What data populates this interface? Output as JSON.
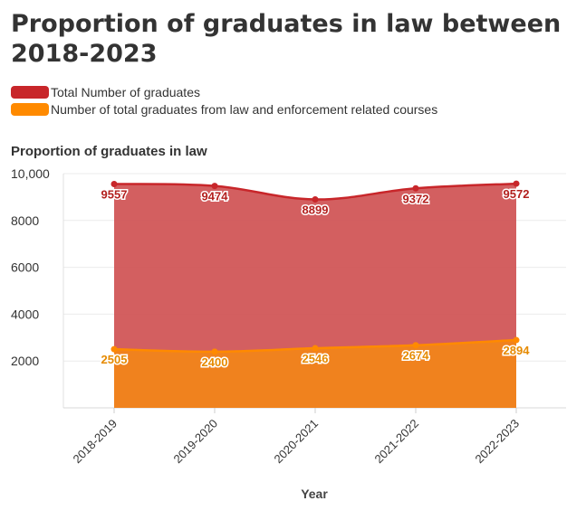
{
  "title": "Proportion of graduates in law between 2018-2023",
  "legend": [
    {
      "label": "Total Number of graduates",
      "color": "#c8262a"
    },
    {
      "label": "Number of total graduates from law and enforcement related courses",
      "color": "#ff8a00"
    }
  ],
  "chart_data": {
    "type": "area",
    "title": "Proportion of graduates in law",
    "xlabel": "Year",
    "ylabel": "",
    "categories": [
      "2018-2019",
      "2019-2020",
      "2020-2021",
      "2021-2022",
      "2022-2023"
    ],
    "ylim": [
      0,
      10000
    ],
    "yticks": [
      "2000",
      "4000",
      "6000",
      "8000",
      "10,000"
    ],
    "grid": true,
    "legend_position": "top-left",
    "series": [
      {
        "name": "Total Number of graduates",
        "values": [
          9557,
          9474,
          8899,
          9372,
          9572
        ],
        "color": "#c8262a",
        "fill": "#cf5153",
        "label_color": "#b3201e"
      },
      {
        "name": "Number of total graduates from law and enforcement related courses",
        "values": [
          2505,
          2400,
          2546,
          2674,
          2894
        ],
        "color": "#ff8a00",
        "fill": "#f0821e",
        "label_color": "#e68a00"
      }
    ]
  }
}
